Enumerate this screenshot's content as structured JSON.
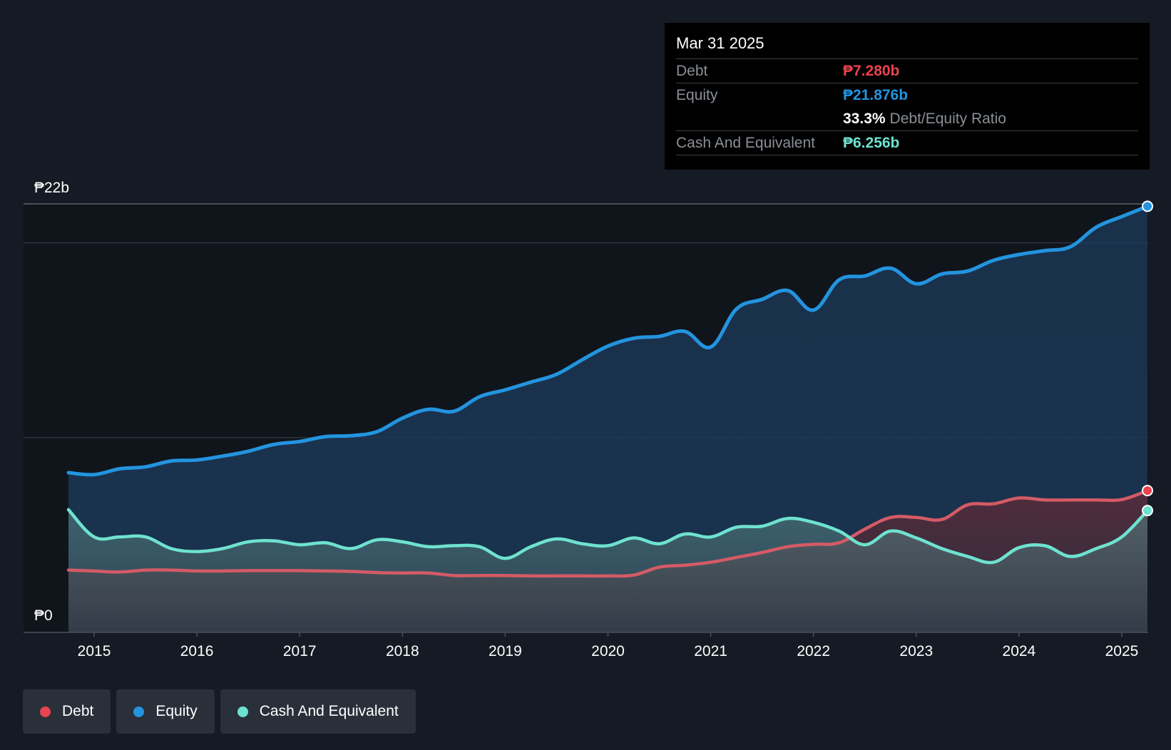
{
  "tooltip": {
    "date": "Mar 31 2025",
    "debt_label": "Debt",
    "debt_value": "₱7.280b",
    "equity_label": "Equity",
    "equity_value": "₱21.876b",
    "ratio_value": "33.3%",
    "ratio_label": "Debt/Equity Ratio",
    "cash_label": "Cash And Equivalent",
    "cash_value": "₱6.256b"
  },
  "legend": {
    "debt": "Debt",
    "equity": "Equity",
    "cash": "Cash And Equivalent"
  },
  "colors": {
    "debt": "#e8434e",
    "equity": "#2394df",
    "cash": "#6ee2d0",
    "background": "#151b24"
  },
  "chart_data": {
    "type": "area",
    "title": "",
    "ylabel_top": "₱22b",
    "ylabel_bottom": "₱0",
    "ylim": [
      0,
      22
    ],
    "xlim": [
      2014.75,
      2025.25
    ],
    "x_ticks": [
      2015,
      2016,
      2017,
      2018,
      2019,
      2020,
      2021,
      2022,
      2023,
      2024,
      2025
    ],
    "x_tick_labels": [
      "2015",
      "2016",
      "2017",
      "2018",
      "2019",
      "2020",
      "2021",
      "2022",
      "2023",
      "2024",
      "2025"
    ],
    "gridlines": [
      20,
      10
    ],
    "series": [
      {
        "name": "Equity",
        "x": [
          2014.75,
          2015.0,
          2015.25,
          2015.5,
          2015.75,
          2016.0,
          2016.25,
          2016.5,
          2016.75,
          2017.0,
          2017.25,
          2017.5,
          2017.75,
          2018.0,
          2018.25,
          2018.5,
          2018.75,
          2019.0,
          2019.25,
          2019.5,
          2019.75,
          2020.0,
          2020.25,
          2020.5,
          2020.75,
          2021.0,
          2021.25,
          2021.5,
          2021.75,
          2022.0,
          2022.25,
          2022.5,
          2022.75,
          2023.0,
          2023.25,
          2023.5,
          2023.75,
          2024.0,
          2024.25,
          2024.5,
          2024.75,
          2025.0,
          2025.25
        ],
        "values": [
          8.2,
          8.1,
          8.4,
          8.5,
          8.8,
          8.85,
          9.05,
          9.3,
          9.65,
          9.8,
          10.05,
          10.1,
          10.3,
          11.0,
          11.45,
          11.35,
          12.1,
          12.45,
          12.85,
          13.25,
          14.0,
          14.7,
          15.1,
          15.2,
          15.45,
          14.65,
          16.6,
          17.1,
          17.55,
          16.55,
          18.1,
          18.3,
          18.7,
          17.9,
          18.4,
          18.55,
          19.1,
          19.4,
          19.6,
          19.8,
          20.8,
          21.35,
          21.876
        ]
      },
      {
        "name": "Debt",
        "x": [
          2014.75,
          2015.0,
          2015.25,
          2015.5,
          2015.75,
          2016.0,
          2016.25,
          2016.5,
          2016.75,
          2017.0,
          2017.25,
          2017.5,
          2017.75,
          2018.0,
          2018.25,
          2018.5,
          2018.75,
          2019.0,
          2019.25,
          2019.5,
          2019.75,
          2020.0,
          2020.25,
          2020.5,
          2020.75,
          2021.0,
          2021.25,
          2021.5,
          2021.75,
          2022.0,
          2022.25,
          2022.5,
          2022.75,
          2023.0,
          2023.25,
          2023.5,
          2023.75,
          2024.0,
          2024.25,
          2024.5,
          2024.75,
          2025.0,
          2025.25
        ],
        "values": [
          3.2,
          3.15,
          3.1,
          3.2,
          3.2,
          3.15,
          3.15,
          3.17,
          3.17,
          3.17,
          3.15,
          3.13,
          3.07,
          3.05,
          3.05,
          2.92,
          2.92,
          2.92,
          2.9,
          2.9,
          2.9,
          2.9,
          2.94,
          3.35,
          3.45,
          3.6,
          3.85,
          4.1,
          4.4,
          4.52,
          4.6,
          5.3,
          5.9,
          5.9,
          5.8,
          6.55,
          6.6,
          6.9,
          6.8,
          6.8,
          6.8,
          6.82,
          7.28
        ]
      },
      {
        "name": "Cash And Equivalent",
        "x": [
          2014.75,
          2015.0,
          2015.25,
          2015.5,
          2015.75,
          2016.0,
          2016.25,
          2016.5,
          2016.75,
          2017.0,
          2017.25,
          2017.5,
          2017.75,
          2018.0,
          2018.25,
          2018.5,
          2018.75,
          2019.0,
          2019.25,
          2019.5,
          2019.75,
          2020.0,
          2020.25,
          2020.5,
          2020.75,
          2021.0,
          2021.25,
          2021.5,
          2021.75,
          2022.0,
          2022.25,
          2022.5,
          2022.75,
          2023.0,
          2023.25,
          2023.5,
          2023.75,
          2024.0,
          2024.25,
          2024.5,
          2024.75,
          2025.0,
          2025.25
        ],
        "values": [
          6.3,
          4.9,
          4.9,
          4.9,
          4.3,
          4.15,
          4.3,
          4.65,
          4.7,
          4.5,
          4.6,
          4.3,
          4.75,
          4.65,
          4.4,
          4.45,
          4.4,
          3.8,
          4.4,
          4.8,
          4.55,
          4.45,
          4.85,
          4.55,
          5.05,
          4.9,
          5.4,
          5.45,
          5.85,
          5.65,
          5.2,
          4.5,
          5.2,
          4.85,
          4.3,
          3.9,
          3.6,
          4.35,
          4.45,
          3.9,
          4.3,
          4.9,
          6.256
        ]
      }
    ]
  }
}
